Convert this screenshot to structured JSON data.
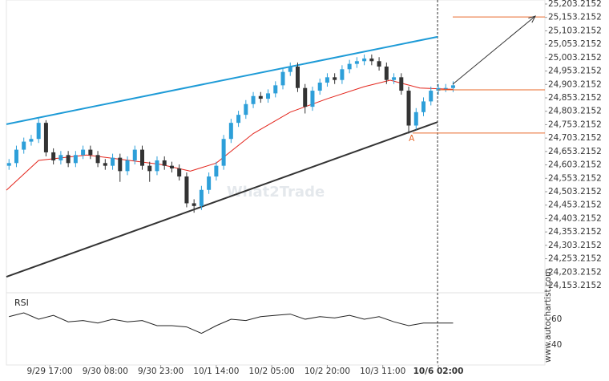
{
  "chart_data": {
    "type": "candlestick",
    "xlim": [
      -11.7,
      133.8
    ],
    "ylim": [
      24126.3,
      25218.2
    ],
    "xticks": [
      {
        "value": 0,
        "label": "9/29 17:00"
      },
      {
        "value": 15,
        "label": "9/30 08:00"
      },
      {
        "value": 30,
        "label": "9/30 23:00"
      },
      {
        "value": 45,
        "label": "10/1 14:00"
      },
      {
        "value": 60,
        "label": "10/2 05:00"
      },
      {
        "value": 75,
        "label": "10/2 20:00"
      },
      {
        "value": 90,
        "label": "10/3 11:00"
      },
      {
        "value": 105,
        "label": "10/6 02:00"
      }
    ],
    "yticks": [
      {
        "value": 25203.2152,
        "label": "25,203.2152"
      },
      {
        "value": 25153.2152,
        "label": "25,153.2152"
      },
      {
        "value": 25103.2152,
        "label": "25,103.2152"
      },
      {
        "value": 25053.2152,
        "label": "25,053.2152"
      },
      {
        "value": 25003.2152,
        "label": "25,003.2152"
      },
      {
        "value": 24953.2152,
        "label": "24,953.2152"
      },
      {
        "value": 24903.2152,
        "label": "24,903.2152"
      },
      {
        "value": 24853.2152,
        "label": "24,853.2152"
      },
      {
        "value": 24803.2152,
        "label": "24,803.2152"
      },
      {
        "value": 24753.2152,
        "label": "24,753.2152"
      },
      {
        "value": 24703.2152,
        "label": "24,703.2152"
      },
      {
        "value": 24653.2152,
        "label": "24,653.2152"
      },
      {
        "value": 24603.2152,
        "label": "24,603.2152"
      },
      {
        "value": 24553.2152,
        "label": "24,553.2152"
      },
      {
        "value": 24503.2152,
        "label": "24,503.2152"
      },
      {
        "value": 24453.2152,
        "label": "24,453.2152"
      },
      {
        "value": 24403.2152,
        "label": "24,403.2152"
      },
      {
        "value": 24353.2152,
        "label": "24,353.2152"
      },
      {
        "value": 24303.2152,
        "label": "24,303.2152"
      },
      {
        "value": 24253.2152,
        "label": "24,253.2152"
      },
      {
        "value": 24203.2152,
        "label": "24,203.2152"
      },
      {
        "value": 24153.2152,
        "label": "24,153.2152"
      }
    ],
    "candles": {
      "up_color": "#2d9fd9",
      "down_color": "#333333",
      "x": [
        -11,
        -9,
        -7,
        -5,
        -3,
        -1,
        1,
        3,
        5,
        7,
        9,
        11,
        13,
        15,
        17,
        19,
        21,
        23,
        25,
        27,
        29,
        31,
        33,
        35,
        37,
        39,
        41,
        43,
        45,
        47,
        49,
        51,
        53,
        55,
        57,
        59,
        61,
        63,
        65,
        67,
        69,
        71,
        73,
        75,
        77,
        79,
        81,
        83,
        85,
        87,
        89,
        91,
        93,
        95,
        97,
        99,
        101,
        103,
        105,
        107,
        109
      ],
      "open": [
        24600,
        24610,
        24660,
        24690,
        24700,
        24760,
        24650,
        24620,
        24640,
        24610,
        24640,
        24660,
        24640,
        24610,
        24600,
        24630,
        24580,
        24620,
        24660,
        24600,
        24580,
        24620,
        24600,
        24590,
        24560,
        24460,
        24450,
        24510,
        24560,
        24600,
        24700,
        24760,
        24790,
        24830,
        24860,
        24850,
        24870,
        24900,
        24950,
        24970,
        24890,
        24820,
        24880,
        24910,
        24930,
        24920,
        24960,
        24980,
        24990,
        25000,
        24990,
        24970,
        24920,
        24930,
        24880,
        24750,
        24800,
        24840,
        24880,
        24890,
        24890
      ],
      "high": [
        24625,
        24675,
        24705,
        24715,
        24780,
        24770,
        24665,
        24655,
        24655,
        24655,
        24675,
        24675,
        24655,
        24625,
        24645,
        24645,
        24635,
        24675,
        24675,
        24615,
        24635,
        24635,
        24615,
        24605,
        24575,
        24475,
        24525,
        24575,
        24615,
        24715,
        24775,
        24805,
        24845,
        24875,
        24875,
        24885,
        24915,
        24965,
        24985,
        24985,
        24905,
        24895,
        24925,
        24945,
        24945,
        24975,
        24995,
        25005,
        25015,
        25015,
        25005,
        24985,
        24945,
        24945,
        24895,
        24815,
        24855,
        24895,
        24905,
        24905,
        24915
      ],
      "low": [
        24585,
        24595,
        24645,
        24675,
        24685,
        24635,
        24605,
        24605,
        24595,
        24595,
        24625,
        24625,
        24595,
        24585,
        24585,
        24540,
        24565,
        24605,
        24585,
        24540,
        24565,
        24585,
        24575,
        24545,
        24445,
        24425,
        24435,
        24495,
        24545,
        24585,
        24685,
        24745,
        24775,
        24815,
        24835,
        24835,
        24855,
        24885,
        24935,
        24875,
        24795,
        24805,
        24865,
        24895,
        24905,
        24905,
        24945,
        24965,
        24975,
        24975,
        24955,
        24905,
        24905,
        24865,
        24720,
        24735,
        24785,
        24825,
        24865,
        24875,
        24875
      ],
      "close": [
        24610,
        24660,
        24690,
        24700,
        24760,
        24650,
        24620,
        24640,
        24610,
        24640,
        24660,
        24640,
        24610,
        24600,
        24630,
        24580,
        24620,
        24660,
        24600,
        24580,
        24620,
        24600,
        24590,
        24560,
        24460,
        24450,
        24510,
        24560,
        24600,
        24700,
        24760,
        24790,
        24830,
        24860,
        24850,
        24870,
        24900,
        24950,
        24970,
        24890,
        24820,
        24880,
        24910,
        24930,
        24920,
        24960,
        24980,
        24990,
        25000,
        24990,
        24970,
        24920,
        24930,
        24880,
        24750,
        24800,
        24840,
        24880,
        24890,
        24890,
        24900
      ]
    },
    "moving_average": {
      "color": "#e3241b",
      "x": [
        -11.7,
        -3,
        10,
        30,
        38,
        45,
        55,
        65,
        75,
        85,
        92,
        100,
        109
      ],
      "values": [
        24509,
        24620,
        24640,
        24605,
        24580,
        24610,
        24720,
        24800,
        24850,
        24895,
        24919,
        24890,
        24885
      ]
    },
    "trend_lines": [
      {
        "color": "#1e9bd7",
        "x": [
          -11.7,
          104.8
        ],
        "values": [
          24755,
          25081
        ]
      },
      {
        "color": "#333333",
        "x": [
          -11.7,
          104.8
        ],
        "values": [
          24186,
          24763
        ]
      }
    ],
    "levels": [
      {
        "color": "#e8692a",
        "value": 25155,
        "x": [
          108.9,
          133.8
        ]
      },
      {
        "color": "#e8692a",
        "value": 24883,
        "x": [
          104.8,
          133.8
        ]
      },
      {
        "color": "#e8692a",
        "value": 24722,
        "x": [
          98.1,
          133.8
        ]
      }
    ],
    "arrow": {
      "color": "#333333",
      "x": [
        108.9,
        131.2
      ],
      "values": [
        24904,
        25158
      ]
    },
    "annotation": {
      "label": "A",
      "color": "#e8692a",
      "x": [
        97.8
      ],
      "values": [
        24700
      ]
    },
    "current_time": 104.8,
    "watermark": "What2Trade",
    "source": "www.autochartist.com",
    "rsi": {
      "label": "RSI",
      "color": "#222222",
      "ylim": [
        24.4,
        80.6
      ],
      "yticks": [
        60,
        40
      ],
      "x": [
        -11,
        -7,
        -3,
        1,
        5,
        9,
        13,
        17,
        21,
        25,
        29,
        33,
        37,
        41,
        45,
        49,
        53,
        57,
        61,
        65,
        69,
        73,
        77,
        81,
        85,
        89,
        93,
        97,
        101,
        105,
        109
      ],
      "values": [
        62,
        65,
        60,
        63,
        58,
        59,
        57,
        60,
        58,
        59,
        55,
        55,
        54,
        49,
        55,
        60,
        59,
        62,
        63,
        64,
        60,
        62,
        61,
        63,
        60,
        62,
        58,
        55,
        57,
        57,
        57
      ]
    }
  }
}
